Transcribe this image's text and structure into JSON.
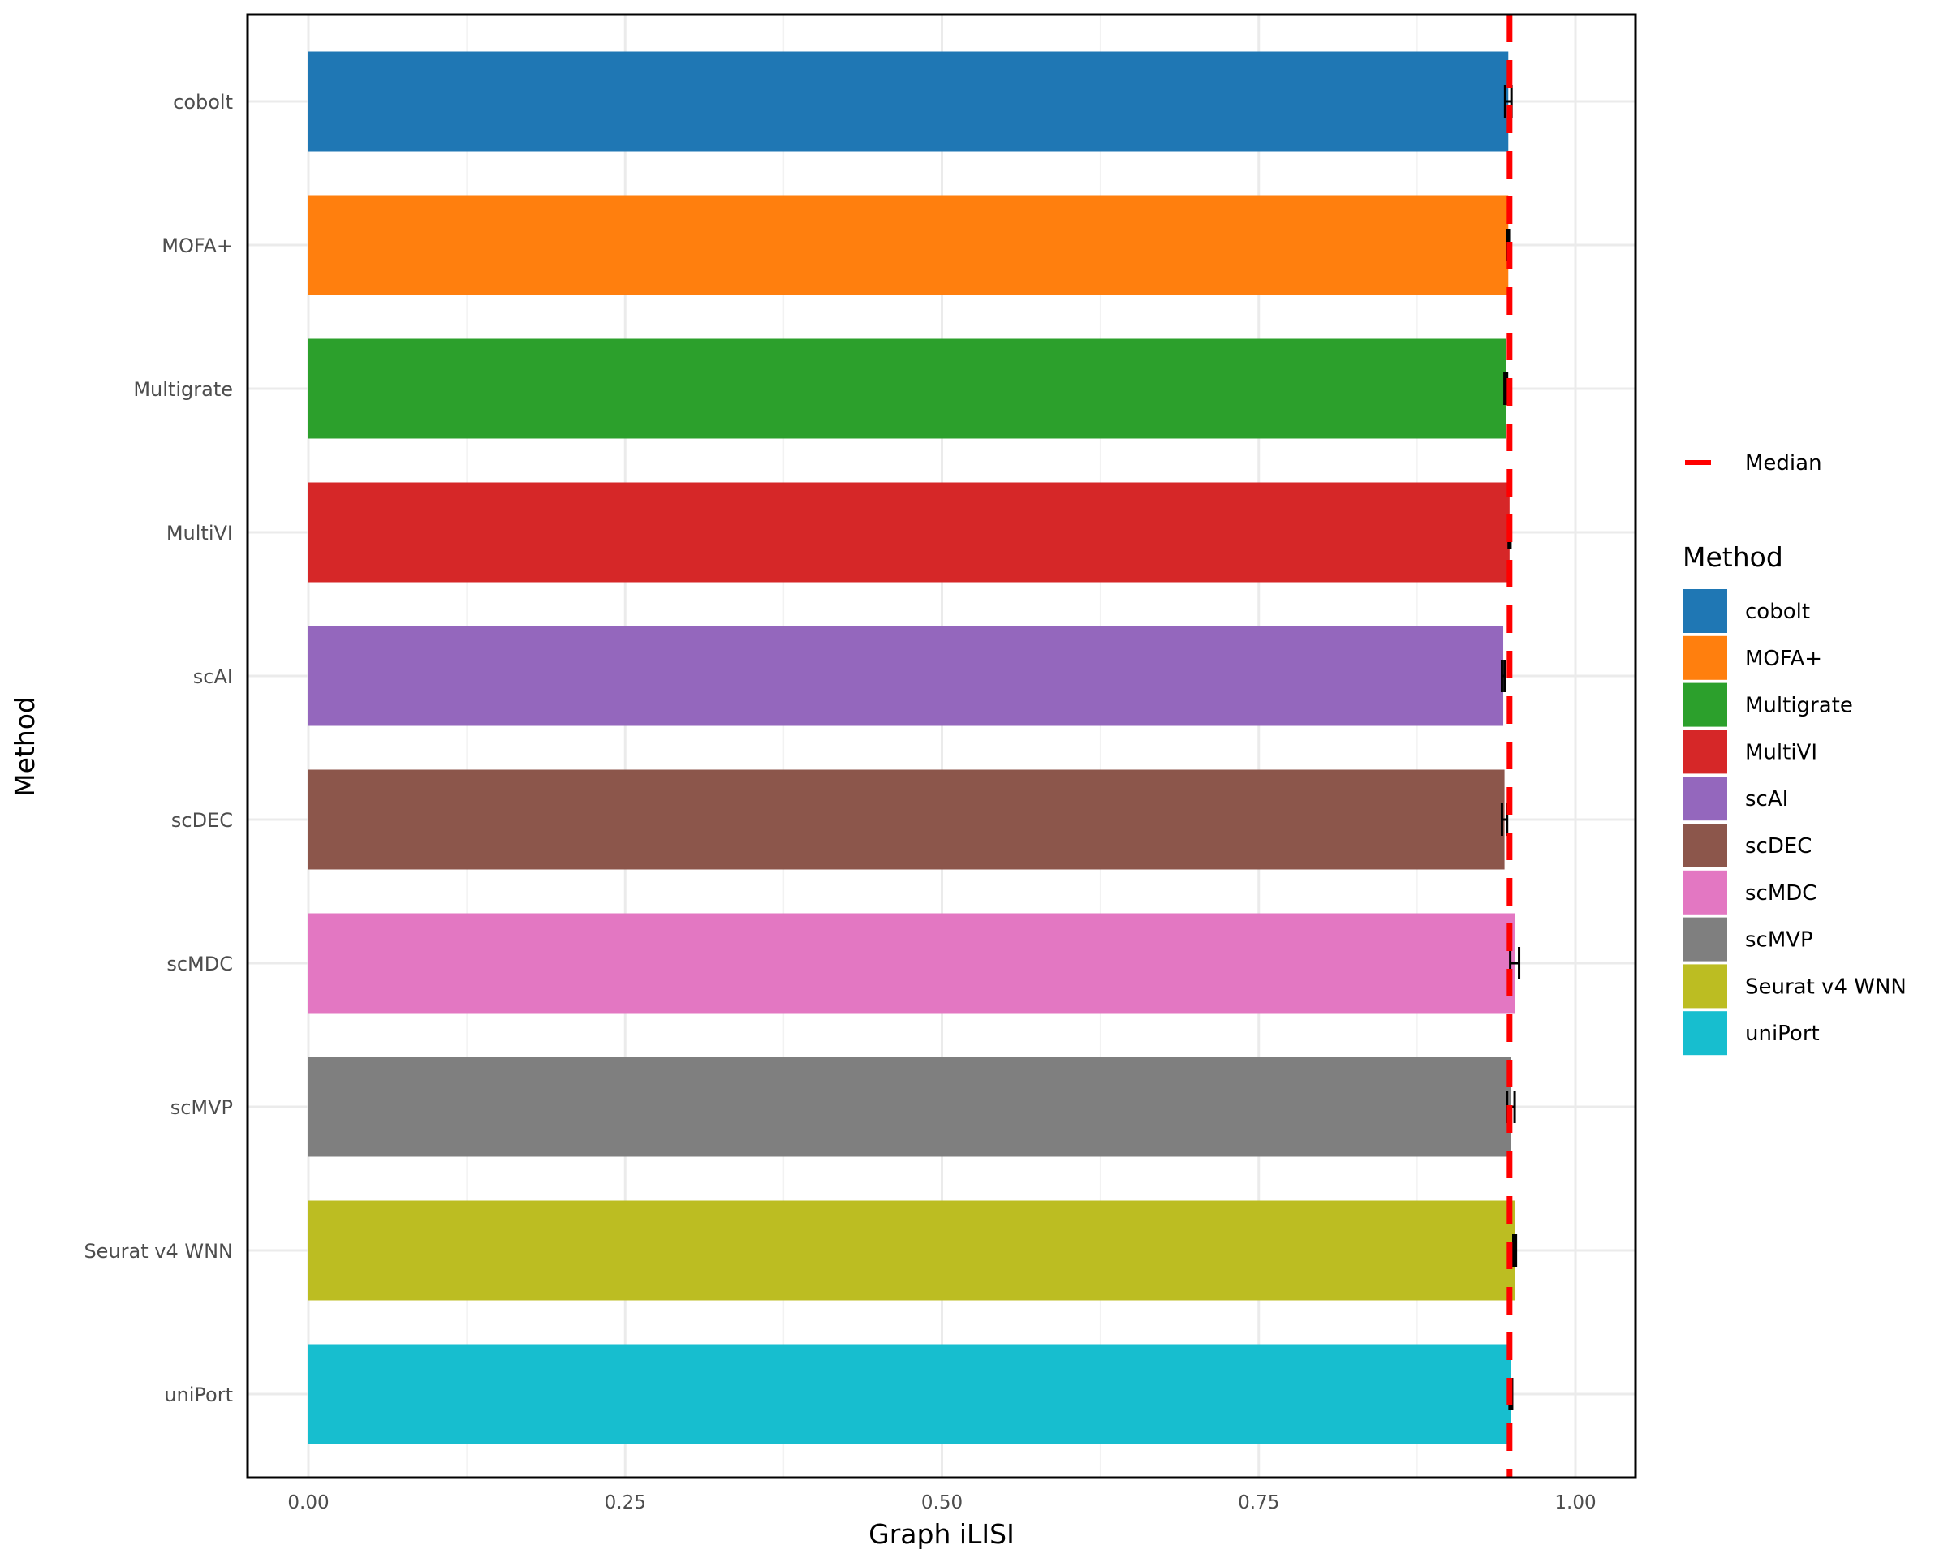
{
  "chart_data": {
    "type": "bar",
    "orientation": "horizontal",
    "xlabel": "Graph iLISI",
    "ylabel": "Method",
    "xlim": [
      -0.05,
      1.05
    ],
    "xticks": [
      0,
      0.25,
      0.5,
      0.75,
      1
    ],
    "xtick_labels": [
      "0.00",
      "0.25",
      "0.50",
      "0.75",
      "1.00"
    ],
    "grid": true,
    "categories": [
      "cobolt",
      "MOFA+",
      "Multigrate",
      "MultiVI",
      "scAI",
      "scDEC",
      "scMDC",
      "scMVP",
      "Seurat v4 WNN",
      "uniPort"
    ],
    "values": [
      0.947,
      0.947,
      0.945,
      0.948,
      0.943,
      0.944,
      0.952,
      0.949,
      0.952,
      0.949
    ],
    "errors": [
      0.0025,
      0.0005,
      0.001,
      0.0007,
      0.001,
      0.002,
      0.0035,
      0.003,
      0.001,
      0.001
    ],
    "colors": [
      "#1f77b4",
      "#ff7f0e",
      "#2ca02c",
      "#d62728",
      "#9467bd",
      "#8c564b",
      "#e377c2",
      "#7f7f7f",
      "#bcbd22",
      "#17becf"
    ],
    "median": 0.948,
    "median_color": "#ff0000",
    "median_label": "Median",
    "legend_title": "Method",
    "legend_position": "right"
  }
}
